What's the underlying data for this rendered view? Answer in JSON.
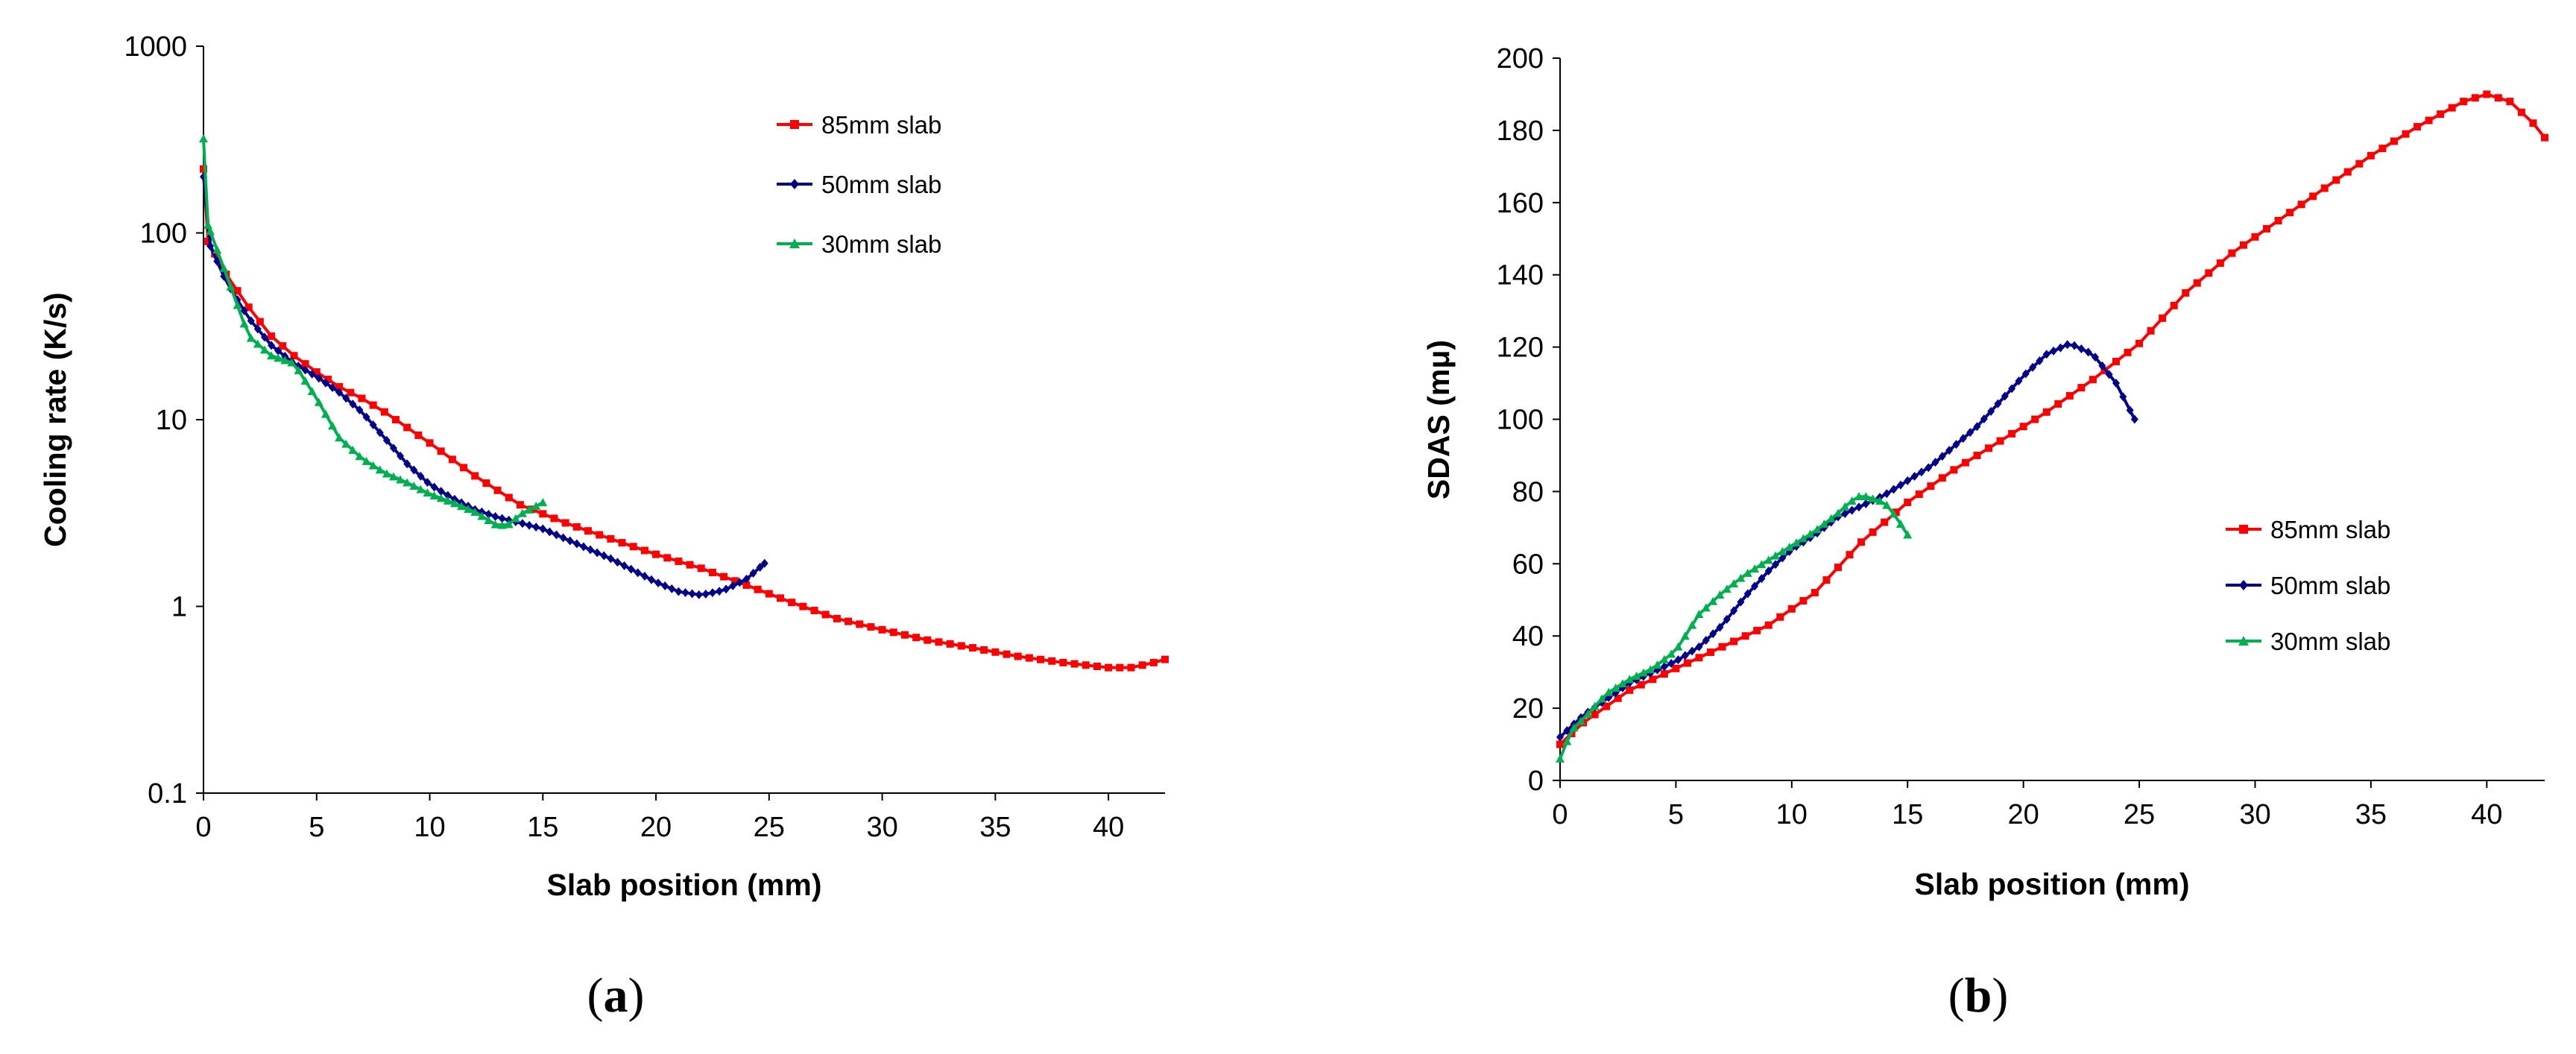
{
  "chart_data": [
    {
      "id": "a",
      "type": "line",
      "caption_prefix": "(",
      "caption_letter": "a",
      "caption_suffix": ")",
      "title": "",
      "xlabel": "Slab position (mm)",
      "ylabel": "Cooling rate (K/s)",
      "xlim": [
        0,
        42.5
      ],
      "ylim": [
        0.1,
        1000
      ],
      "yscale": "log",
      "xticks": [
        0,
        5,
        10,
        15,
        20,
        25,
        30,
        35,
        40
      ],
      "xtick_labels": [
        "0",
        "5",
        "10",
        "15",
        "20",
        "25",
        "30",
        "35",
        "40"
      ],
      "yticks": [
        0.1,
        1,
        10,
        100,
        1000
      ],
      "ytick_labels": [
        "0.1",
        "1",
        "10",
        "100",
        "1000"
      ],
      "grid": false,
      "legend_position": "top-right",
      "series": [
        {
          "name": "85mm slab",
          "color": "#ff0000",
          "marker": "square",
          "step": 0.5,
          "x": [
            0,
            0.2,
            1,
            2,
            3,
            4,
            5,
            6,
            7,
            8,
            10,
            12,
            14,
            16,
            18,
            20,
            22,
            24,
            26,
            28,
            30,
            32,
            34,
            36,
            38,
            40,
            41,
            42,
            42.5
          ],
          "y": [
            220,
            90,
            60,
            40,
            28,
            22,
            18,
            15,
            13,
            11,
            7.5,
            5,
            3.5,
            2.8,
            2.3,
            1.9,
            1.6,
            1.3,
            1.05,
            0.86,
            0.75,
            0.66,
            0.6,
            0.54,
            0.5,
            0.47,
            0.47,
            0.5,
            0.52
          ]
        },
        {
          "name": "50mm slab",
          "color": "#00008b",
          "marker": "diamond",
          "step": 0.3,
          "x": [
            0,
            0.3,
            1,
            2,
            3,
            4,
            5,
            6,
            7,
            8,
            9,
            10,
            11,
            12,
            13,
            14,
            15,
            16,
            18,
            20,
            21,
            22,
            23,
            24,
            24.8
          ],
          "y": [
            200,
            85,
            55,
            35,
            25,
            20,
            17,
            14,
            11,
            8,
            5.8,
            4.5,
            3.8,
            3.3,
            3,
            2.8,
            2.6,
            2.3,
            1.8,
            1.35,
            1.2,
            1.15,
            1.22,
            1.4,
            1.7
          ]
        },
        {
          "name": "30mm slab",
          "color": "#00b050",
          "marker": "triangle",
          "step": 0.3,
          "x": [
            0,
            0.2,
            1,
            2,
            3,
            4,
            5,
            6,
            7,
            8,
            9,
            10,
            11,
            12,
            13,
            13.5,
            14,
            15
          ],
          "y": [
            320,
            110,
            60,
            28,
            22,
            20,
            13,
            8,
            6.2,
            5.2,
            4.6,
            4,
            3.6,
            3.2,
            2.7,
            2.75,
            3.1,
            3.6
          ]
        }
      ]
    },
    {
      "id": "b",
      "type": "line",
      "caption_prefix": "(",
      "caption_letter": "b",
      "caption_suffix": ")",
      "title": "",
      "xlabel": "Slab position (mm)",
      "ylabel": "SDAS (mμ)",
      "xlim": [
        0,
        42.5
      ],
      "ylim": [
        0,
        200
      ],
      "yscale": "linear",
      "xticks": [
        0,
        5,
        10,
        15,
        20,
        25,
        30,
        35,
        40
      ],
      "xtick_labels": [
        "0",
        "5",
        "10",
        "15",
        "20",
        "25",
        "30",
        "35",
        "40"
      ],
      "yticks": [
        0,
        20,
        40,
        60,
        80,
        100,
        120,
        140,
        160,
        180,
        200
      ],
      "ytick_labels": [
        "0",
        "20",
        "40",
        "60",
        "80",
        "100",
        "120",
        "140",
        "160",
        "180",
        "200"
      ],
      "grid": false,
      "legend_position": "center-right",
      "series": [
        {
          "name": "85mm slab",
          "color": "#ff0000",
          "marker": "square",
          "step": 0.5,
          "x": [
            0,
            1,
            3,
            5,
            7,
            9,
            11,
            13,
            15,
            17,
            19,
            21,
            23,
            25,
            27,
            29,
            31,
            33,
            35,
            37,
            39,
            40,
            41,
            42,
            42.5
          ],
          "y": [
            10,
            16,
            25,
            31,
            37,
            43,
            52,
            66,
            77,
            86,
            94,
            102,
            111,
            121,
            135,
            146,
            155,
            164,
            173,
            181,
            188,
            190,
            188,
            182,
            178
          ]
        },
        {
          "name": "50mm slab",
          "color": "#00008b",
          "marker": "diamond",
          "step": 0.3,
          "x": [
            0,
            1,
            3,
            5,
            6,
            7,
            8,
            9,
            10,
            11,
            12,
            13,
            14,
            16,
            18,
            20,
            21,
            22,
            23,
            24,
            24.8
          ],
          "y": [
            12,
            18,
            27,
            33,
            37,
            43,
            51,
            58,
            64,
            68,
            73,
            76,
            79,
            87,
            98,
            112,
            118,
            121,
            118,
            110,
            100
          ]
        },
        {
          "name": "30mm slab",
          "color": "#00b050",
          "marker": "triangle",
          "step": 0.3,
          "x": [
            0,
            0.5,
            1,
            2,
            2.5,
            3,
            4,
            5,
            6,
            7,
            8,
            9,
            10,
            11,
            12,
            12.5,
            13,
            13.5,
            14,
            14.5,
            15
          ],
          "y": [
            6,
            14,
            17,
            24,
            26,
            28,
            31,
            36,
            46,
            52,
            57,
            61,
            65,
            69,
            74,
            77,
            79,
            78,
            77,
            73,
            68
          ]
        }
      ]
    }
  ]
}
